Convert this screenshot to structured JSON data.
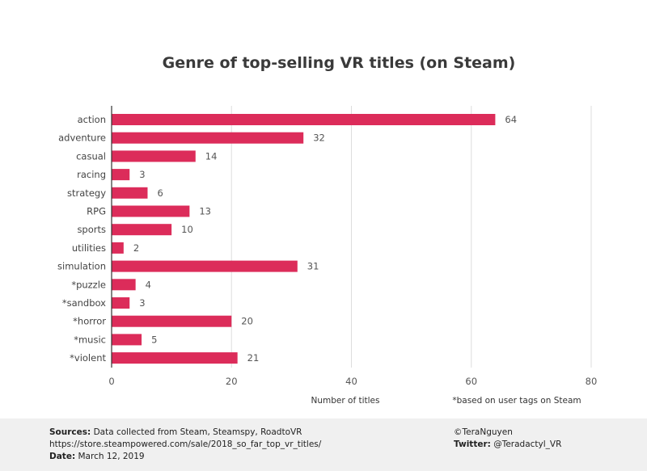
{
  "chart_data": {
    "type": "bar",
    "orientation": "horizontal",
    "title": "Genre of top-selling VR titles (on Steam)",
    "categories": [
      "action",
      "adventure",
      "casual",
      "racing",
      "strategy",
      "RPG",
      "sports",
      "utilities",
      "simulation",
      "*puzzle",
      "*sandbox",
      "*horror",
      "*music",
      "*violent"
    ],
    "values": [
      64,
      32,
      14,
      3,
      6,
      13,
      10,
      2,
      31,
      4,
      3,
      20,
      5,
      21
    ],
    "xlabel": "Number of titles",
    "ylabel": "",
    "xlim": [
      0,
      80
    ],
    "xticks": [
      0,
      20,
      40,
      60,
      80
    ],
    "grid": true,
    "legend": "none",
    "bar_color": "#dc2c5a",
    "footnote": "*based on user tags on Steam"
  },
  "footer": {
    "sources_label": "Sources:",
    "sources_text": "Data collected from Steam, Steamspy, RoadtoVR",
    "url": "https://store.steampowered.com/sale/2018_so_far_top_vr_titles/",
    "date_label": "Date:",
    "date_text": "March 12, 2019",
    "author": "©TeraNguyen",
    "twitter_label": "Twitter:",
    "twitter_text": "@Teradactyl_VR"
  }
}
